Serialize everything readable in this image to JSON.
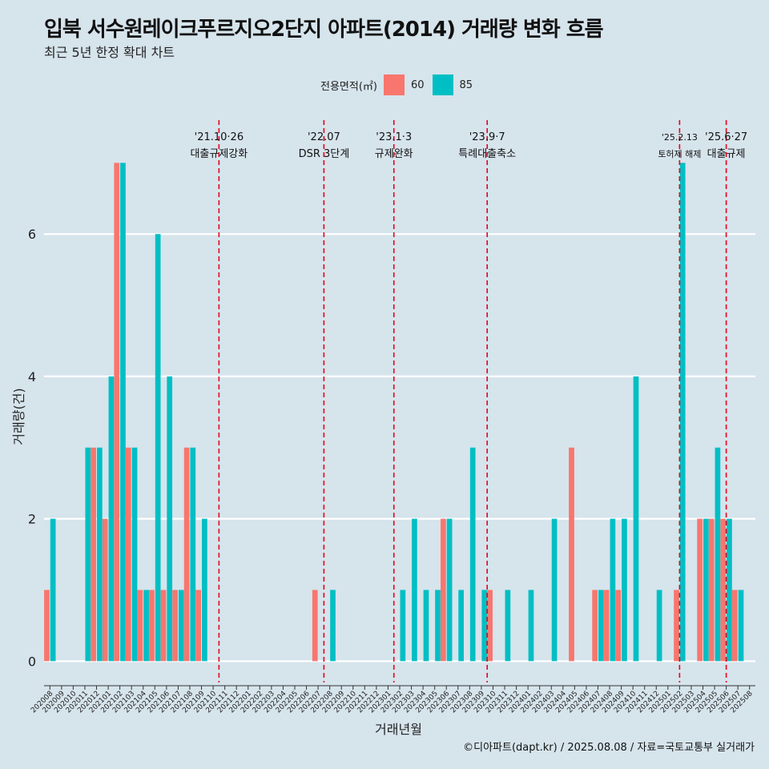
{
  "title": "입북 서수원레이크푸르지오2단지 아파트(2014) 거래량 변화 흐름",
  "subtitle": "최근 5년 한정 확대 차트",
  "caption": "©디아파트(dapt.kr) / 2025.08.08 / 자료=국토교통부 실거래가",
  "legend": {
    "title": "전용면적(㎡)",
    "items": [
      {
        "label": "60",
        "color": "#f8766d"
      },
      {
        "label": "85",
        "color": "#00bfc4"
      }
    ]
  },
  "chart_data": {
    "type": "bar",
    "xlabel": "거래년월",
    "ylabel": "거래량(건)",
    "ylim": [
      -0.3,
      7.6
    ],
    "yticks": [
      0,
      2,
      4,
      6
    ],
    "categories": [
      "202008",
      "202009",
      "202010",
      "202011",
      "202012",
      "202101",
      "202102",
      "202103",
      "202104",
      "202105",
      "202106",
      "202107",
      "202108",
      "202109",
      "202110",
      "202111",
      "202112",
      "202201",
      "202202",
      "202203",
      "202204",
      "202205",
      "202206",
      "202207",
      "202208",
      "202209",
      "202210",
      "202211",
      "202212",
      "202301",
      "202302",
      "202303",
      "202304",
      "202305",
      "202306",
      "202307",
      "202308",
      "202309",
      "202310",
      "202311",
      "202312",
      "202401",
      "202402",
      "202403",
      "202404",
      "202405",
      "202406",
      "202407",
      "202408",
      "202409",
      "202410",
      "202411",
      "202412",
      "202501",
      "202502",
      "202503",
      "202504",
      "202505",
      "202506",
      "202507",
      "202508"
    ],
    "series": [
      {
        "name": "60",
        "color": "#f8766d",
        "values": [
          1,
          0,
          0,
          0,
          3,
          2,
          7,
          3,
          1,
          1,
          1,
          1,
          3,
          1,
          0,
          0,
          0,
          0,
          0,
          0,
          0,
          0,
          0,
          1,
          0,
          0,
          0,
          0,
          0,
          0,
          0,
          0,
          0,
          0,
          2,
          0,
          0,
          0,
          1,
          0,
          0,
          0,
          0,
          0,
          0,
          3,
          0,
          1,
          1,
          1,
          0,
          0,
          0,
          0,
          1,
          0,
          2,
          2,
          2,
          1,
          0
        ]
      },
      {
        "name": "85",
        "color": "#00bfc4",
        "values": [
          2,
          0,
          0,
          3,
          3,
          4,
          7,
          3,
          1,
          6,
          4,
          1,
          3,
          2,
          0,
          0,
          0,
          0,
          0,
          0,
          0,
          0,
          0,
          0,
          1,
          0,
          0,
          0,
          0,
          0,
          1,
          2,
          1,
          1,
          2,
          1,
          3,
          1,
          0,
          1,
          0,
          1,
          0,
          2,
          0,
          0,
          0,
          1,
          2,
          2,
          4,
          0,
          1,
          0,
          7,
          0,
          2,
          3,
          2,
          1,
          0
        ]
      }
    ],
    "events": [
      {
        "index": 14.5,
        "date": "'21.10·26",
        "label": "대출규제강화"
      },
      {
        "index": 23.5,
        "date": "'22.07",
        "label": "DSR 3단계"
      },
      {
        "index": 29.5,
        "date": "'23.1·3",
        "label": "규제완화"
      },
      {
        "index": 37.5,
        "date": "'23.9·7",
        "label": "특례대출축소"
      },
      {
        "index": 54,
        "date": "'25.2.13",
        "label": "토허제 해제"
      },
      {
        "index": 58,
        "date": "'25.6·27",
        "label": "대출규제"
      }
    ]
  }
}
